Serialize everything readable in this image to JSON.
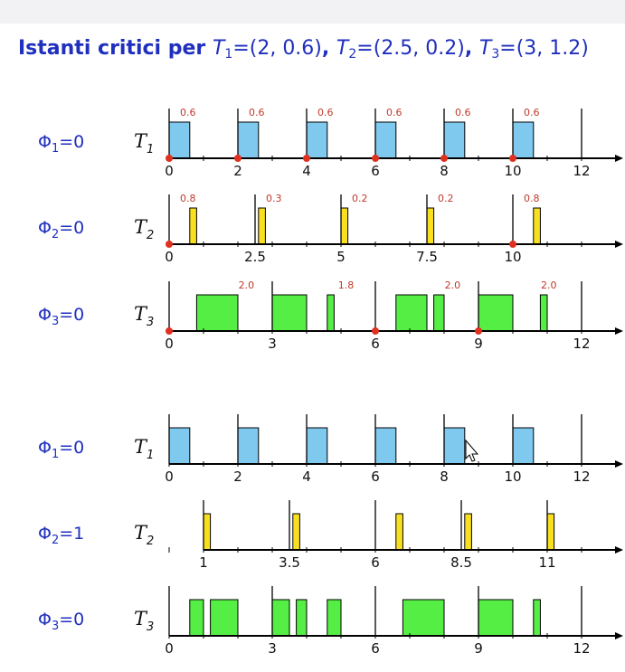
{
  "title": {
    "prefix": "Istanti critici per ",
    "tasks": [
      {
        "name": "T",
        "sub": "1",
        "params": "=(2, 0.6)"
      },
      {
        "name": "T",
        "sub": "2",
        "params": "=(2.5, 0.2)"
      },
      {
        "name": "T",
        "sub": "3",
        "params": "=(3, 1.2)"
      }
    ],
    "separator": ", "
  },
  "colors": {
    "T1": "#7fc8ee",
    "T2": "#f8e020",
    "T3": "#55ee44",
    "critical": "#e03020",
    "label": "#1f2fbe",
    "annotation": "#c0392b"
  },
  "chart_data": [
    {
      "type": "timeline",
      "phase": {
        "symbol": "Φ",
        "sub": "1",
        "value": "=0"
      },
      "task": {
        "name": "T",
        "sub": "1"
      },
      "color": "T1",
      "ticks": [
        "0",
        "2",
        "4",
        "6",
        "8",
        "10",
        "12"
      ],
      "tick_values": [
        0,
        2,
        4,
        6,
        8,
        10,
        12
      ],
      "releases": [
        0,
        2,
        4,
        6,
        8,
        10,
        12
      ],
      "critical_instants": [
        0,
        2,
        4,
        6,
        8,
        10
      ],
      "executions": [
        [
          0,
          0.6
        ],
        [
          2,
          2.6
        ],
        [
          4,
          4.6
        ],
        [
          6,
          6.6
        ],
        [
          8,
          8.6
        ],
        [
          10,
          10.6
        ]
      ],
      "annotations": [
        {
          "t": 0,
          "text": "0.6"
        },
        {
          "t": 2,
          "text": "0.6"
        },
        {
          "t": 4,
          "text": "0.6"
        },
        {
          "t": 6,
          "text": "0.6"
        },
        {
          "t": 8,
          "text": "0.6"
        },
        {
          "t": 10,
          "text": "0.6"
        }
      ]
    },
    {
      "type": "timeline",
      "phase": {
        "symbol": "Φ",
        "sub": "2",
        "value": "=0"
      },
      "task": {
        "name": "T",
        "sub": "2"
      },
      "color": "T2",
      "ticks": [
        "0",
        "2.5",
        "5",
        "7.5",
        "10"
      ],
      "tick_values": [
        0,
        2.5,
        5,
        7.5,
        10
      ],
      "releases": [
        0,
        2.5,
        5,
        7.5,
        10
      ],
      "critical_instants": [
        0,
        10
      ],
      "executions": [
        [
          0.6,
          0.8
        ],
        [
          2.6,
          2.8
        ],
        [
          5,
          5.2
        ],
        [
          7.5,
          7.7
        ],
        [
          10.6,
          10.8
        ]
      ],
      "annotations": [
        {
          "t": 0,
          "text": "0.8"
        },
        {
          "t": 2.5,
          "text": "0.3"
        },
        {
          "t": 5,
          "text": "0.2"
        },
        {
          "t": 7.5,
          "text": "0.2"
        },
        {
          "t": 10,
          "text": "0.8"
        }
      ]
    },
    {
      "type": "timeline",
      "phase": {
        "symbol": "Φ",
        "sub": "3",
        "value": "=0"
      },
      "task": {
        "name": "T",
        "sub": "3"
      },
      "color": "T3",
      "ticks": [
        "0",
        "3",
        "6",
        "9",
        "12"
      ],
      "tick_values": [
        0,
        3,
        6,
        9,
        12
      ],
      "releases": [
        0,
        3,
        6,
        9,
        12
      ],
      "critical_instants": [
        0,
        6,
        9
      ],
      "executions": [
        [
          0.8,
          2.0
        ],
        [
          3.0,
          4.0
        ],
        [
          4.6,
          4.8
        ],
        [
          6.6,
          7.5
        ],
        [
          7.7,
          8.0
        ],
        [
          9.0,
          10.0
        ],
        [
          10.8,
          11.0
        ]
      ],
      "annotations": [
        {
          "t": 1.7,
          "text": "2.0"
        },
        {
          "t": 4.6,
          "text": "1.8"
        },
        {
          "t": 7.7,
          "text": "2.0"
        },
        {
          "t": 10.5,
          "text": "2.0"
        }
      ]
    },
    {
      "type": "timeline",
      "phase": {
        "symbol": "Φ",
        "sub": "1",
        "value": "=0"
      },
      "task": {
        "name": "T",
        "sub": "1"
      },
      "color": "T1",
      "ticks": [
        "0",
        "2",
        "4",
        "6",
        "8",
        "10",
        "12"
      ],
      "tick_values": [
        0,
        2,
        4,
        6,
        8,
        10,
        12
      ],
      "releases": [
        0,
        2,
        4,
        6,
        8,
        10,
        12
      ],
      "critical_instants": [],
      "executions": [
        [
          0,
          0.6
        ],
        [
          2,
          2.6
        ],
        [
          4,
          4.6
        ],
        [
          6,
          6.6
        ],
        [
          8,
          8.6
        ],
        [
          10,
          10.6
        ]
      ],
      "annotations": []
    },
    {
      "type": "timeline",
      "phase": {
        "symbol": "Φ",
        "sub": "2",
        "value": "=1"
      },
      "task": {
        "name": "T",
        "sub": "2"
      },
      "color": "T2",
      "ticks": [
        "1",
        "3.5",
        "6",
        "8.5",
        "11"
      ],
      "tick_values": [
        1,
        3.5,
        6,
        8.5,
        11
      ],
      "releases": [
        1,
        3.5,
        6,
        8.5,
        11
      ],
      "critical_instants": [],
      "executions": [
        [
          1.0,
          1.2
        ],
        [
          3.6,
          3.8
        ],
        [
          6.6,
          6.8
        ],
        [
          8.6,
          8.8
        ],
        [
          11.0,
          11.2
        ]
      ],
      "annotations": []
    },
    {
      "type": "timeline",
      "phase": {
        "symbol": "Φ",
        "sub": "3",
        "value": "=0"
      },
      "task": {
        "name": "T",
        "sub": "3"
      },
      "color": "T3",
      "ticks": [
        "0",
        "3",
        "6",
        "9",
        "12"
      ],
      "tick_values": [
        0,
        3,
        6,
        9,
        12
      ],
      "releases": [
        0,
        3,
        6,
        9,
        12
      ],
      "critical_instants": [],
      "executions": [
        [
          0.6,
          1.0
        ],
        [
          1.2,
          2.0
        ],
        [
          3.0,
          3.5
        ],
        [
          3.7,
          4.0
        ],
        [
          4.6,
          5.0
        ],
        [
          6.8,
          8.0
        ],
        [
          9.0,
          10.0
        ],
        [
          10.6,
          10.8
        ]
      ],
      "annotations": []
    }
  ]
}
